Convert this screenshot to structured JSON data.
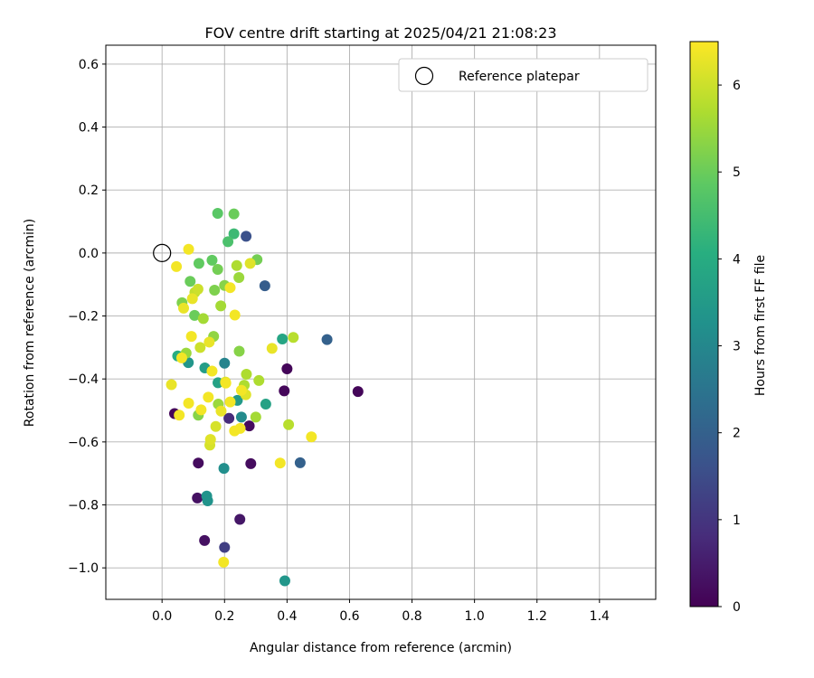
{
  "chart_data": {
    "type": "scatter",
    "title": "FOV centre drift starting at 2025/04/21 21:08:23",
    "xlabel": "Angular distance from reference (arcmin)",
    "ylabel": "Rotation from reference (arcmin)",
    "xlim": [
      -0.18,
      1.58
    ],
    "ylim": [
      -1.1,
      0.66
    ],
    "xticks": [
      0.0,
      0.2,
      0.4,
      0.6,
      0.8,
      1.0,
      1.2,
      1.4
    ],
    "xtick_labels": [
      "0.0",
      "0.2",
      "0.4",
      "0.6",
      "0.8",
      "1.0",
      "1.2",
      "1.4"
    ],
    "yticks": [
      0.6,
      0.4,
      0.2,
      0.0,
      -0.2,
      -0.4,
      -0.6,
      -0.8,
      -1.0
    ],
    "ytick_labels": [
      "0.6",
      "0.4",
      "0.2",
      "0.0",
      "−0.2",
      "−0.4",
      "−0.6",
      "−0.8",
      "−1.0"
    ],
    "grid": true,
    "legend": {
      "placement": "top-right",
      "entries": [
        {
          "label": "Reference platepar",
          "marker": "open-circle",
          "x": 0.0,
          "y": 0.0
        }
      ]
    },
    "colorbar": {
      "label": "Hours from first FF file",
      "range": [
        0,
        6.5
      ],
      "ticks": [
        0,
        1,
        2,
        3,
        4,
        5,
        6
      ],
      "tick_labels": [
        "0",
        "1",
        "2",
        "3",
        "4",
        "5",
        "6"
      ],
      "colormap": "viridis"
    },
    "points": [
      [
        0.04,
        -0.51,
        0.1
      ],
      [
        0.116,
        -0.667,
        0.2
      ],
      [
        0.113,
        -0.778,
        0.3
      ],
      [
        0.136,
        -0.913,
        0.3
      ],
      [
        0.249,
        -0.846,
        0.4
      ],
      [
        0.284,
        -0.669,
        0.2
      ],
      [
        0.391,
        -0.438,
        0.1
      ],
      [
        0.4,
        -0.368,
        0.1
      ],
      [
        0.279,
        -0.549,
        0.2
      ],
      [
        0.627,
        -0.44,
        0.1
      ],
      [
        0.214,
        -0.525,
        0.8
      ],
      [
        0.2,
        -0.935,
        1.2
      ],
      [
        0.269,
        0.053,
        1.6
      ],
      [
        0.329,
        -0.104,
        1.9
      ],
      [
        0.528,
        -0.275,
        2.0
      ],
      [
        0.442,
        -0.666,
        2.0
      ],
      [
        0.2,
        -0.35,
        2.9
      ],
      [
        0.254,
        -0.521,
        3.1
      ],
      [
        0.198,
        -0.684,
        3.2
      ],
      [
        0.143,
        -0.772,
        3.3
      ],
      [
        0.146,
        -0.787,
        3.3
      ],
      [
        0.084,
        -0.348,
        3.4
      ],
      [
        0.137,
        -0.365,
        3.6
      ],
      [
        0.241,
        -0.468,
        3.5
      ],
      [
        0.179,
        -0.412,
        3.7
      ],
      [
        0.332,
        -0.48,
        3.7
      ],
      [
        0.385,
        -0.273,
        3.8
      ],
      [
        0.393,
        -1.041,
        3.4
      ],
      [
        0.05,
        -0.327,
        4.0
      ],
      [
        0.23,
        0.061,
        4.4
      ],
      [
        0.211,
        0.036,
        4.6
      ],
      [
        0.178,
        0.126,
        4.8
      ],
      [
        0.23,
        0.124,
        5.0
      ],
      [
        0.118,
        -0.033,
        4.9
      ],
      [
        0.16,
        -0.023,
        4.9
      ],
      [
        0.09,
        -0.09,
        5.0
      ],
      [
        0.104,
        -0.198,
        5.0
      ],
      [
        0.178,
        -0.052,
        5.1
      ],
      [
        0.304,
        -0.021,
        5.1
      ],
      [
        0.064,
        -0.158,
        5.2
      ],
      [
        0.168,
        -0.118,
        5.2
      ],
      [
        0.2,
        -0.103,
        5.3
      ],
      [
        0.116,
        -0.515,
        5.3
      ],
      [
        0.165,
        -0.265,
        5.4
      ],
      [
        0.247,
        -0.312,
        5.3
      ],
      [
        0.077,
        -0.318,
        5.5
      ],
      [
        0.18,
        -0.48,
        5.5
      ],
      [
        0.246,
        -0.078,
        5.5
      ],
      [
        0.132,
        -0.208,
        5.6
      ],
      [
        0.188,
        -0.168,
        5.6
      ],
      [
        0.239,
        -0.04,
        5.7
      ],
      [
        0.263,
        -0.42,
        5.7
      ],
      [
        0.27,
        -0.385,
        5.7
      ],
      [
        0.3,
        -0.521,
        5.6
      ],
      [
        0.31,
        -0.405,
        5.7
      ],
      [
        0.42,
        -0.268,
        5.8
      ],
      [
        0.405,
        -0.545,
        5.8
      ],
      [
        0.105,
        -0.125,
        5.9
      ],
      [
        0.115,
        -0.115,
        6.0
      ],
      [
        0.122,
        -0.3,
        6.0
      ],
      [
        0.153,
        -0.61,
        6.1
      ],
      [
        0.155,
        -0.592,
        6.2
      ],
      [
        0.172,
        -0.551,
        6.1
      ],
      [
        0.203,
        -0.41,
        6.2
      ],
      [
        0.282,
        -0.033,
        6.2
      ],
      [
        0.268,
        -0.45,
        6.2
      ],
      [
        0.069,
        -0.175,
        6.3
      ],
      [
        0.03,
        -0.418,
        6.3
      ],
      [
        0.097,
        -0.145,
        6.3
      ],
      [
        0.151,
        -0.283,
        6.3
      ],
      [
        0.352,
        -0.303,
        6.3
      ],
      [
        0.189,
        -0.502,
        6.3
      ],
      [
        0.046,
        -0.043,
        6.4
      ],
      [
        0.085,
        0.012,
        6.4
      ],
      [
        0.055,
        -0.515,
        6.4
      ],
      [
        0.085,
        -0.477,
        6.4
      ],
      [
        0.125,
        -0.498,
        6.4
      ],
      [
        0.148,
        -0.458,
        6.4
      ],
      [
        0.16,
        -0.375,
        6.4
      ],
      [
        0.094,
        -0.265,
        6.4
      ],
      [
        0.063,
        -0.333,
        6.4
      ],
      [
        0.204,
        -0.413,
        6.4
      ],
      [
        0.218,
        -0.473,
        6.4
      ],
      [
        0.218,
        -0.11,
        6.4
      ],
      [
        0.233,
        -0.197,
        6.4
      ],
      [
        0.232,
        -0.565,
        6.4
      ],
      [
        0.25,
        -0.557,
        6.4
      ],
      [
        0.254,
        -0.436,
        6.4
      ],
      [
        0.378,
        -0.667,
        6.4
      ],
      [
        0.478,
        -0.584,
        6.4
      ],
      [
        0.197,
        -0.982,
        6.4
      ]
    ]
  }
}
